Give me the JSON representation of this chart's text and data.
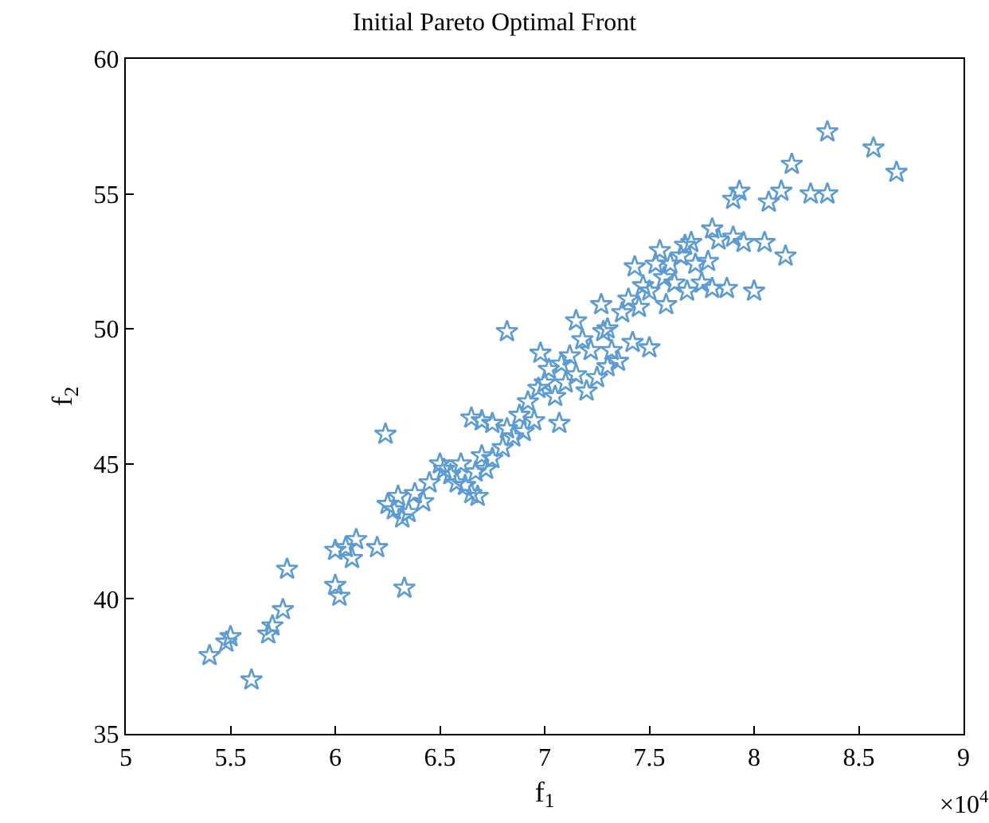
{
  "chart_data": {
    "type": "scatter",
    "title": "Initial Pareto Optimal Front",
    "xlabel": "f$_{1}$",
    "ylabel": "f$_{2}$",
    "annotations": [
      "×10$^{4}$"
    ],
    "marker": "star",
    "grid": false,
    "legend": false,
    "xlim": [
      5,
      9
    ],
    "xticks": [
      5,
      5.5,
      6,
      6.5,
      7,
      7.5,
      8,
      8.5,
      9
    ],
    "ylim": [
      35,
      60
    ],
    "yticks": [
      35,
      40,
      45,
      50,
      55,
      60
    ],
    "series": [
      {
        "color": "#5b9bd5",
        "x": [
          5.4,
          5.48,
          5.5,
          5.6,
          5.68,
          5.7,
          5.75,
          5.77,
          6.0,
          6.02,
          6.0,
          6.05,
          6.08,
          6.1,
          6.2,
          6.24,
          6.33,
          6.25,
          6.28,
          6.3,
          6.32,
          6.35,
          6.38,
          6.42,
          6.45,
          6.5,
          6.52,
          6.55,
          6.58,
          6.6,
          6.62,
          6.65,
          6.67,
          6.7,
          6.72,
          6.75,
          6.65,
          6.7,
          6.75,
          6.68,
          6.8,
          6.82,
          6.85,
          6.88,
          6.9,
          6.92,
          6.95,
          6.97,
          6.98,
          7.0,
          7.02,
          7.05,
          7.07,
          7.08,
          6.82,
          7.1,
          7.12,
          7.15,
          7.15,
          7.18,
          7.2,
          7.22,
          7.25,
          7.27,
          7.28,
          7.3,
          7.3,
          7.32,
          7.35,
          7.37,
          7.4,
          7.42,
          7.43,
          7.45,
          7.47,
          7.5,
          7.5,
          7.53,
          7.55,
          7.57,
          7.58,
          7.6,
          7.62,
          7.65,
          7.67,
          7.68,
          7.7,
          7.72,
          7.75,
          7.78,
          7.8,
          7.8,
          7.83,
          7.87,
          7.9,
          7.9,
          7.93,
          7.95,
          8.0,
          8.05,
          8.07,
          8.13,
          8.15,
          8.18,
          8.27,
          8.35,
          8.35,
          8.57,
          8.68
        ],
        "values": [
          37.9,
          38.4,
          38.6,
          37.0,
          38.7,
          39.0,
          39.6,
          41.1,
          40.5,
          40.1,
          41.8,
          41.9,
          41.5,
          42.2,
          41.9,
          46.1,
          40.4,
          43.5,
          43.3,
          43.8,
          43.0,
          43.2,
          43.9,
          43.6,
          44.3,
          45.0,
          44.8,
          44.6,
          44.3,
          45.0,
          44.2,
          43.9,
          44.7,
          45.3,
          44.8,
          45.2,
          46.7,
          46.6,
          46.5,
          43.8,
          45.6,
          46.3,
          46.0,
          46.8,
          46.2,
          47.3,
          46.6,
          47.8,
          49.1,
          48.0,
          48.5,
          47.5,
          46.5,
          48.7,
          49.9,
          48.0,
          49.0,
          48.3,
          50.3,
          49.6,
          47.7,
          49.2,
          48.2,
          50.9,
          49.9,
          48.6,
          50.0,
          49.2,
          48.8,
          50.6,
          51.1,
          49.5,
          52.3,
          50.8,
          51.6,
          49.3,
          51.4,
          52.4,
          52.9,
          51.9,
          50.9,
          52.4,
          51.7,
          52.7,
          53.1,
          51.4,
          53.2,
          52.4,
          51.7,
          52.5,
          53.7,
          51.5,
          53.3,
          51.5,
          53.4,
          54.8,
          55.1,
          53.2,
          51.4,
          53.2,
          54.7,
          55.1,
          52.7,
          56.1,
          55.0,
          55.0,
          57.3,
          56.7,
          55.8
        ]
      }
    ]
  }
}
